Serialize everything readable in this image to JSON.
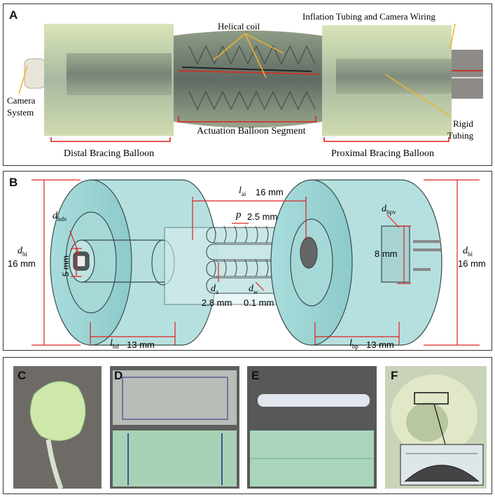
{
  "panel_a": {
    "label": "A",
    "camera_system": [
      "Camera",
      "System"
    ],
    "helical_coil": "Helical coil",
    "inflation_tubing": "Inflation Tubing and Camera Wiring",
    "rigid_tubing": [
      "Rigid",
      "Tubing"
    ],
    "actuation_segment": "Actuation Balloon Segment",
    "distal_balloon": "Distal Bracing Balloon",
    "proximal_balloon": "Proximal Bracing Balloon"
  },
  "panel_b": {
    "label": "B",
    "l_ai": "l",
    "l_ai_sub": "ai",
    "l_ai_val": "16 mm",
    "p": "p",
    "p_val": "2.5 mm",
    "d_bdv": "d",
    "d_bdv_sub": "bdv",
    "d_bpv": "d",
    "d_bpv_sub": "bpv",
    "d_bi_left": "d",
    "d_bi_left_sub": "bi",
    "d_bi_left_val": "16 mm",
    "d_bi_right": "d",
    "d_bi_right_sub": "bi",
    "d_bi_right_val": "16 mm",
    "inner_left": "5 mm",
    "inner_right": "8 mm",
    "d_a": "d",
    "d_a_sub": "a",
    "d_a_val": "2.8 mm",
    "d_w": "d",
    "d_w_sub": "w",
    "d_w_val": "0.1 mm",
    "l_bd": "l",
    "l_bd_sub": "bd",
    "l_bd_val": "13 mm",
    "l_bp": "l",
    "l_bp_sub": "bp",
    "l_bp_val": "13 mm"
  },
  "panel_c": {
    "label": "C"
  },
  "panel_d": {
    "label": "D"
  },
  "panel_e": {
    "label": "E"
  },
  "panel_f": {
    "label": "F"
  },
  "colors": {
    "balloon": "#9ed4d4",
    "dimension_line": "#e02020",
    "annotation_arrow": "#f0b429",
    "outline": "#3a4a4a"
  }
}
